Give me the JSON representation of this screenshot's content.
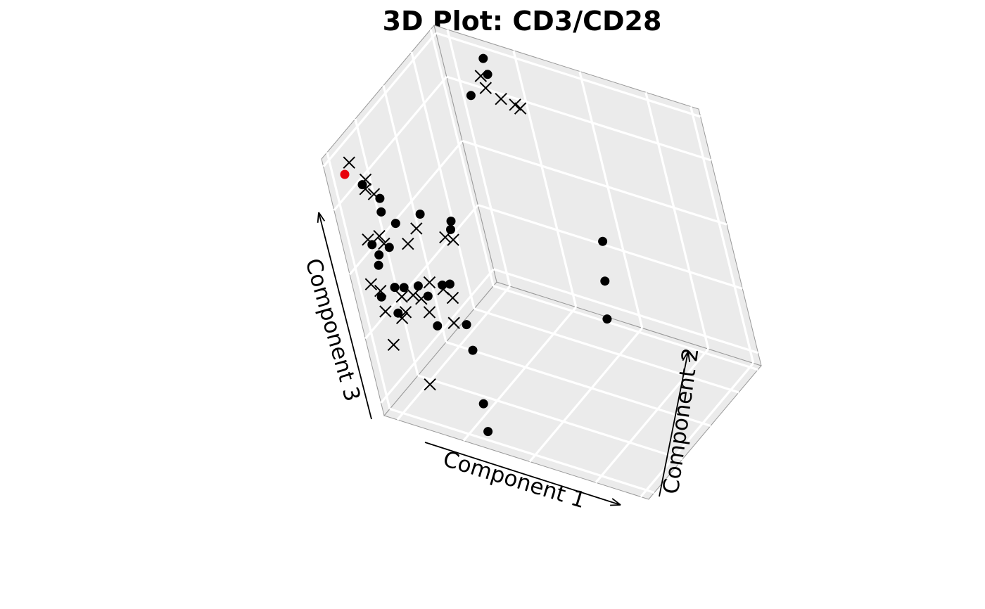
{
  "chart_data": {
    "type": "scatter",
    "title": "3D Plot: CD3/CD28",
    "xlabel": "Component 1",
    "ylabel": "Component 2",
    "zlabel": "Component 3",
    "projection": "3d",
    "grid": true,
    "pane_color": "#ebebeb",
    "colors": {
      "default": "#000000",
      "highlight": "#e8000b"
    },
    "series": [
      {
        "marker": "circle",
        "points": [
          {
            "x": 0.05,
            "y": 0.05,
            "z": 0.93,
            "highlight": true
          },
          {
            "x": 0.07,
            "y": 0.12,
            "z": 0.86
          },
          {
            "x": 0.14,
            "y": 0.1,
            "z": 0.84
          },
          {
            "x": 0.2,
            "y": 0.95,
            "z": 0.9
          },
          {
            "x": 0.18,
            "y": 0.98,
            "z": 0.94
          },
          {
            "x": 0.17,
            "y": 0.85,
            "z": 0.86
          },
          {
            "x": 0.12,
            "y": 0.12,
            "z": 0.77
          },
          {
            "x": 0.15,
            "y": 0.15,
            "z": 0.72
          },
          {
            "x": 0.2,
            "y": 0.25,
            "z": 0.72
          },
          {
            "x": 0.05,
            "y": 0.12,
            "z": 0.62
          },
          {
            "x": 0.08,
            "y": 0.1,
            "z": 0.6
          },
          {
            "x": 0.1,
            "y": 0.15,
            "z": 0.61
          },
          {
            "x": 0.08,
            "y": 0.08,
            "z": 0.57
          },
          {
            "x": 0.26,
            "y": 0.35,
            "z": 0.66
          },
          {
            "x": 0.28,
            "y": 0.3,
            "z": 0.66
          },
          {
            "x": 0.1,
            "y": 0.12,
            "z": 0.47
          },
          {
            "x": 0.12,
            "y": 0.15,
            "z": 0.46
          },
          {
            "x": 0.06,
            "y": 0.08,
            "z": 0.44
          },
          {
            "x": 0.15,
            "y": 0.2,
            "z": 0.45
          },
          {
            "x": 0.18,
            "y": 0.2,
            "z": 0.42
          },
          {
            "x": 0.22,
            "y": 0.25,
            "z": 0.45
          },
          {
            "x": 0.24,
            "y": 0.27,
            "z": 0.45
          },
          {
            "x": 0.1,
            "y": 0.1,
            "z": 0.38
          },
          {
            "x": 0.98,
            "y": 0.15,
            "z": 0.92
          },
          {
            "x": 0.92,
            "y": 0.2,
            "z": 0.72
          },
          {
            "x": 0.98,
            "y": 0.05,
            "z": 0.67
          },
          {
            "x": 0.25,
            "y": 0.3,
            "z": 0.28
          },
          {
            "x": 0.1,
            "y": 0.35,
            "z": 0.2
          },
          {
            "x": 0.25,
            "y": 0.3,
            "z": 0.18
          },
          {
            "x": 0.3,
            "y": 0.2,
            "z": 0.04
          },
          {
            "x": 0.35,
            "y": 0.1,
            "z": 0.0
          }
        ]
      },
      {
        "marker": "x",
        "points": [
          {
            "x": 0.05,
            "y": 0.1,
            "z": 0.95
          },
          {
            "x": 0.1,
            "y": 0.1,
            "z": 0.9
          },
          {
            "x": 0.2,
            "y": 0.9,
            "z": 0.92
          },
          {
            "x": 0.22,
            "y": 0.88,
            "z": 0.89
          },
          {
            "x": 0.26,
            "y": 0.9,
            "z": 0.85
          },
          {
            "x": 0.3,
            "y": 0.92,
            "z": 0.83
          },
          {
            "x": 0.3,
            "y": 0.95,
            "z": 0.8
          },
          {
            "x": 0.09,
            "y": 0.1,
            "z": 0.86
          },
          {
            "x": 0.12,
            "y": 0.1,
            "z": 0.85
          },
          {
            "x": 0.05,
            "y": 0.1,
            "z": 0.65
          },
          {
            "x": 0.1,
            "y": 0.1,
            "z": 0.68
          },
          {
            "x": 0.1,
            "y": 0.12,
            "z": 0.64
          },
          {
            "x": 0.18,
            "y": 0.15,
            "z": 0.65
          },
          {
            "x": 0.2,
            "y": 0.2,
            "z": 0.69
          },
          {
            "x": 0.25,
            "y": 0.3,
            "z": 0.62
          },
          {
            "x": 0.28,
            "y": 0.3,
            "z": 0.62
          },
          {
            "x": 0.03,
            "y": 0.08,
            "z": 0.48
          },
          {
            "x": 0.05,
            "y": 0.1,
            "z": 0.45
          },
          {
            "x": 0.12,
            "y": 0.12,
            "z": 0.44
          },
          {
            "x": 0.15,
            "y": 0.15,
            "z": 0.44
          },
          {
            "x": 0.2,
            "y": 0.2,
            "z": 0.48
          },
          {
            "x": 0.25,
            "y": 0.2,
            "z": 0.47
          },
          {
            "x": 0.05,
            "y": 0.1,
            "z": 0.37
          },
          {
            "x": 0.12,
            "y": 0.12,
            "z": 0.38
          },
          {
            "x": 0.15,
            "y": 0.2,
            "z": 0.4
          },
          {
            "x": 0.2,
            "y": 0.15,
            "z": 0.39
          },
          {
            "x": 0.25,
            "y": 0.25,
            "z": 0.41
          },
          {
            "x": 0.1,
            "y": 0.12,
            "z": 0.35
          },
          {
            "x": 0.05,
            "y": 0.1,
            "z": 0.24
          },
          {
            "x": 0.2,
            "y": 0.3,
            "z": 0.27
          },
          {
            "x": 0.1,
            "y": 0.2,
            "z": 0.05
          }
        ]
      }
    ]
  }
}
